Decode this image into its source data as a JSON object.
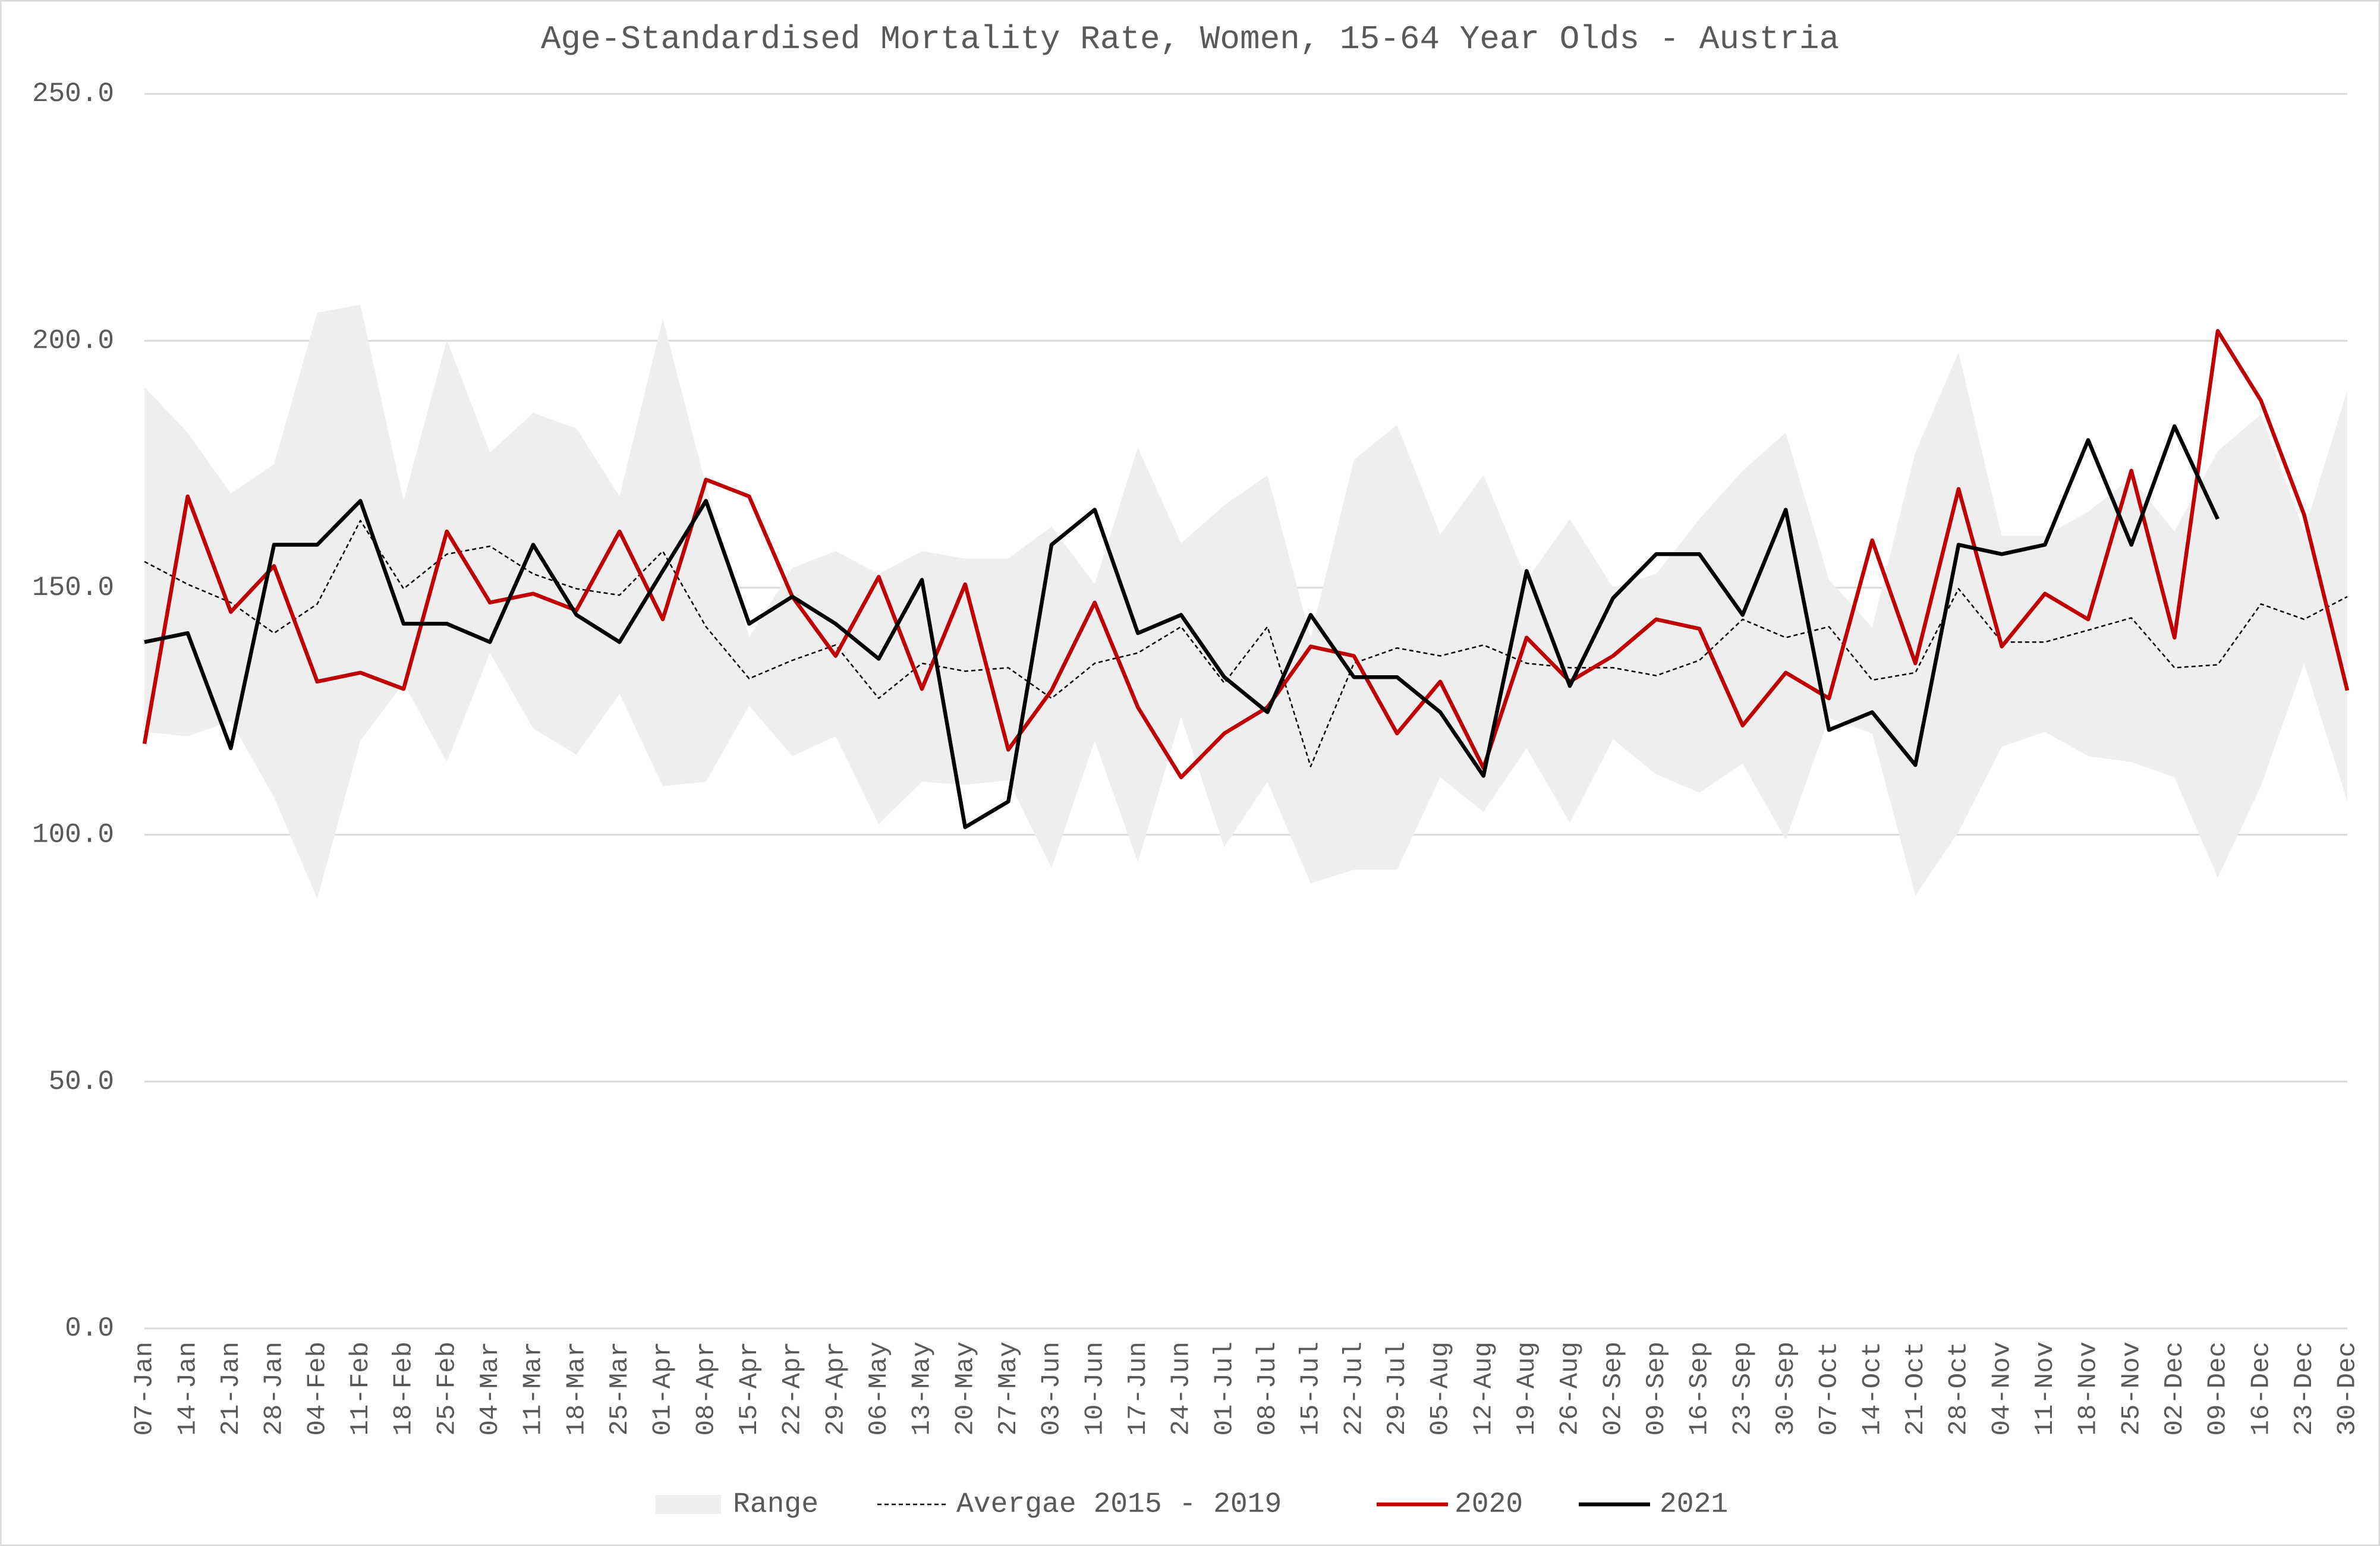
{
  "chart_data": {
    "type": "line",
    "title": "Age-Standardised Mortality Rate, Women, 15-64 Year Olds - Austria",
    "categories": [
      "07-Jan",
      "14-Jan",
      "21-Jan",
      "28-Jan",
      "04-Feb",
      "11-Feb",
      "18-Feb",
      "25-Feb",
      "04-Mar",
      "11-Mar",
      "18-Mar",
      "25-Mar",
      "01-Apr",
      "08-Apr",
      "15-Apr",
      "22-Apr",
      "29-Apr",
      "06-May",
      "13-May",
      "20-May",
      "27-May",
      "03-Jun",
      "10-Jun",
      "17-Jun",
      "24-Jun",
      "01-Jul",
      "08-Jul",
      "15-Jul",
      "22-Jul",
      "29-Jul",
      "05-Aug",
      "12-Aug",
      "19-Aug",
      "26-Aug",
      "02-Sep",
      "09-Sep",
      "16-Sep",
      "23-Sep",
      "30-Sep",
      "07-Oct",
      "14-Oct",
      "21-Oct",
      "28-Oct",
      "04-Nov",
      "11-Nov",
      "18-Nov",
      "25-Nov",
      "02-Dec",
      "09-Dec",
      "16-Dec",
      "23-Dec",
      "30-Dec"
    ],
    "ylim": [
      0,
      250
    ],
    "yticks": [
      {
        "value": 0,
        "label": "0.0"
      },
      {
        "value": 50,
        "label": "50.0"
      },
      {
        "value": 100,
        "label": "100.0"
      },
      {
        "value": 150,
        "label": "150.0"
      },
      {
        "value": 200,
        "label": "200.0"
      },
      {
        "value": 250,
        "label": "250.0"
      }
    ],
    "grid": true,
    "legend": "bottom",
    "series": [
      {
        "name": "Range",
        "color": "#eeeeee",
        "high": [
          190.6,
          181.4,
          169.1,
          175,
          205.7,
          207.3,
          167.6,
          200.2,
          177.4,
          185.4,
          182.3,
          168.5,
          204.5,
          170.7,
          140,
          154,
          157.4,
          152.8,
          157.4,
          155.9,
          155.9,
          162.4,
          150.7,
          178.4,
          159,
          166.7,
          172.8,
          139.9,
          175.9,
          183,
          160.8,
          172.8,
          151.6,
          163.9,
          150,
          152.8,
          163.9,
          173.7,
          181.4,
          151.6,
          142,
          177.4,
          197.7,
          160.5,
          160.5,
          165.4,
          172.2,
          161.4,
          177.7,
          185.1,
          161.4,
          190
        ],
        "low": [
          120.8,
          119.9,
          123,
          107.6,
          87,
          119,
          130.7,
          114.7,
          136.8,
          121.5,
          116.2,
          128.5,
          109.8,
          110.7,
          126.1,
          115.9,
          119.9,
          102.1,
          110.7,
          110.1,
          111,
          93.2,
          119,
          94.4,
          123.9,
          97.5,
          110.7,
          90.1,
          92.9,
          92.9,
          111.6,
          104.6,
          117.5,
          102.4,
          119.3,
          112.2,
          108.5,
          114.4,
          99,
          123.6,
          120.5,
          87.6,
          100.6,
          117.8,
          120.8,
          115.9,
          114.7,
          111.6,
          91.3,
          109.8,
          134.7,
          106.7
        ]
      },
      {
        "name": "Avergae 2015 - 2019",
        "color": "#000000",
        "dashed": true,
        "values": [
          155.3,
          150.7,
          147,
          140.8,
          146.7,
          163.6,
          149.8,
          156.8,
          158.4,
          152.8,
          149.8,
          148.5,
          157.4,
          142.1,
          131.6,
          135.3,
          138.4,
          127.6,
          134.7,
          133.1,
          133.8,
          127.6,
          134.7,
          136.8,
          142.1,
          130.7,
          142.1,
          113.8,
          134.7,
          137.8,
          136.2,
          138.4,
          134.7,
          133.8,
          133.8,
          132.2,
          135.3,
          143.6,
          139.9,
          142.1,
          131.3,
          132.8,
          149.8,
          139,
          139,
          141.4,
          143.9,
          133.8,
          134.4,
          146.7,
          143.6,
          148.2
        ]
      },
      {
        "name": "2020",
        "color": "#c00000",
        "values": [
          118.4,
          168.5,
          145.1,
          154.4,
          131,
          132.8,
          129.5,
          161.4,
          147,
          148.8,
          145.4,
          161.4,
          143.6,
          171.9,
          168.5,
          148.2,
          136.2,
          152.2,
          129.5,
          150.7,
          117.2,
          129.2,
          147,
          125.8,
          111.6,
          120.5,
          125.8,
          138.1,
          136.2,
          120.5,
          131,
          113.5,
          139.9,
          131,
          136.2,
          143.6,
          141.7,
          122.1,
          132.8,
          127.6,
          159.6,
          134.7,
          170,
          138.1,
          148.8,
          143.6,
          173.7,
          139.9,
          202,
          187.9,
          164.8,
          129.2
        ]
      },
      {
        "name": "2021",
        "color": "#000000",
        "values": [
          139,
          140.8,
          117.5,
          158.7,
          158.7,
          167.6,
          142.7,
          142.7,
          139,
          158.7,
          144.5,
          139,
          153.4,
          167.6,
          142.7,
          148.2,
          142.7,
          135.6,
          151.6,
          101.5,
          106.7,
          158.7,
          165.8,
          140.8,
          144.5,
          131.9,
          124.8,
          144.5,
          131.9,
          131.9,
          124.8,
          111.9,
          153.4,
          130.1,
          147.9,
          156.8,
          156.8,
          144.5,
          165.8,
          121.2,
          124.8,
          114.1,
          158.7,
          156.8,
          158.7,
          179.9,
          158.7,
          182.7,
          163.9,
          null,
          null,
          null
        ]
      }
    ]
  }
}
